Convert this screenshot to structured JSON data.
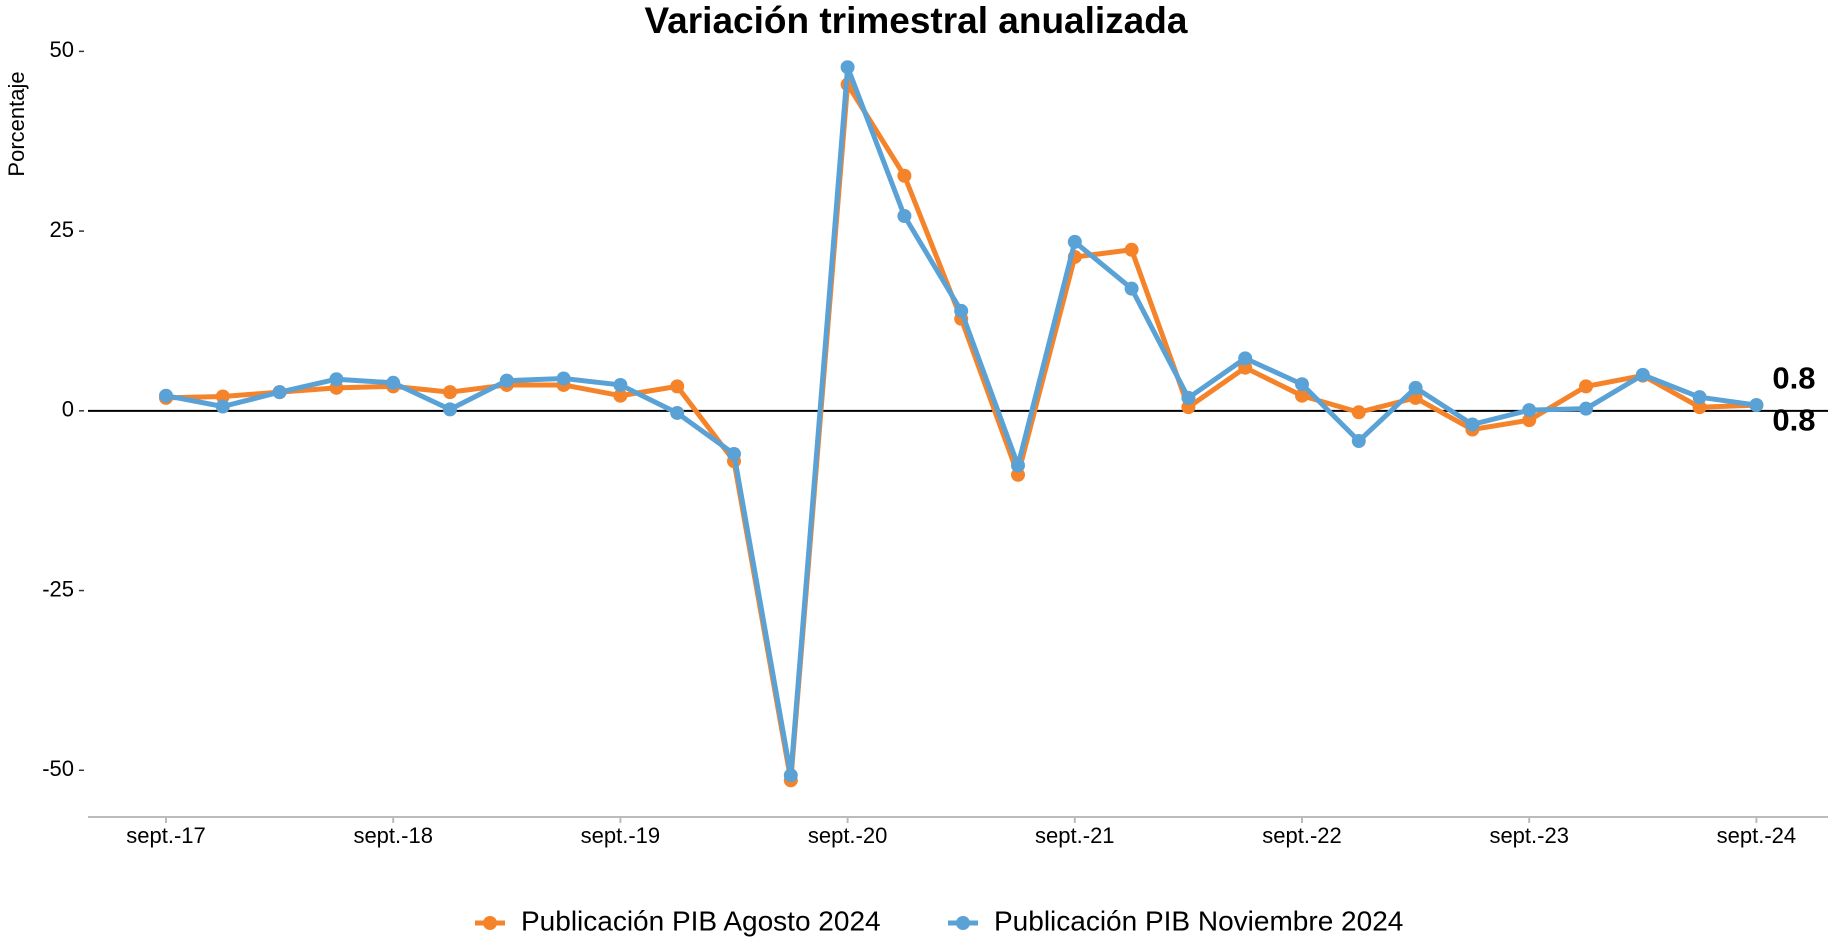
{
  "chart_data": {
    "type": "line",
    "title": "Variación trimestral anualizada",
    "y_label": "Porcentaje",
    "categories": [
      "sept.-17",
      null,
      null,
      null,
      "sept.-18",
      null,
      null,
      null,
      "sept.-19",
      null,
      null,
      null,
      "sept.-20",
      null,
      null,
      null,
      "sept.-21",
      null,
      null,
      null,
      "sept.-22",
      null,
      null,
      null,
      "sept.-23",
      null,
      null,
      null,
      "sept.-24"
    ],
    "series": [
      {
        "name": "Publicación PIB Agosto 2024",
        "color": "#f5832a",
        "end_label": "0.8",
        "values": [
          1.8,
          2.0,
          2.6,
          3.2,
          3.4,
          2.6,
          3.6,
          3.6,
          2.1,
          3.4,
          -7.0,
          -51.4,
          45.4,
          32.7,
          12.8,
          -8.9,
          21.4,
          22.4,
          0.5,
          6.0,
          2.1,
          -0.2,
          1.8,
          -2.6,
          -1.3,
          3.4,
          4.9,
          0.5,
          0.8
        ]
      },
      {
        "name": "Publicación PIB Noviembre 2024",
        "color": "#5aa2d6",
        "end_label": "0.8",
        "values": [
          2.1,
          0.6,
          2.6,
          4.4,
          3.9,
          0.2,
          4.2,
          4.5,
          3.6,
          -0.3,
          -6.0,
          -50.7,
          47.8,
          27.1,
          13.9,
          -7.6,
          23.5,
          17.0,
          1.8,
          7.3,
          3.7,
          -4.2,
          3.2,
          -1.9,
          0.1,
          0.3,
          5.0,
          1.9,
          0.8
        ]
      }
    ],
    "ylim": [
      -56.5,
      52
    ],
    "yticks": [
      -50,
      -25,
      0,
      25,
      50
    ],
    "hline": 0,
    "legend": "bottom"
  }
}
